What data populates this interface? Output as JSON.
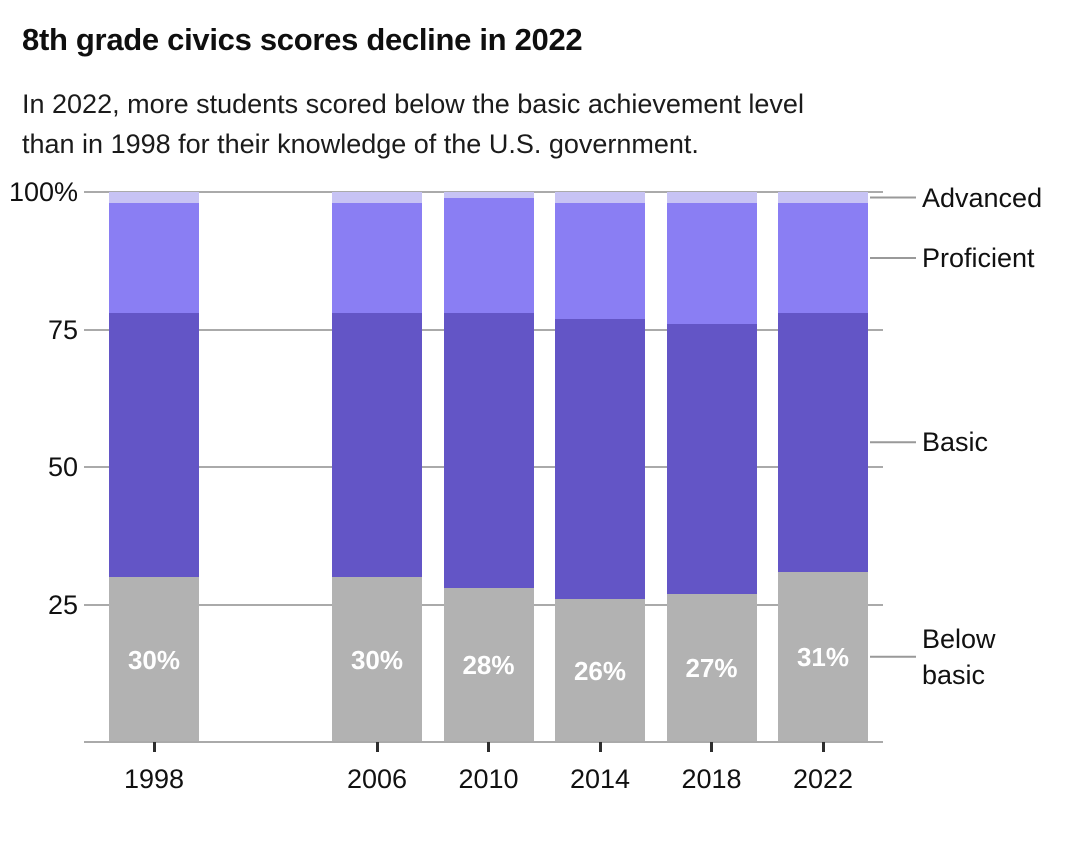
{
  "header": {
    "title": "8th grade civics scores decline in 2022",
    "subtitle_line1": "In 2022, more students scored below the basic achievement level",
    "subtitle_line2": "than in 1998 for their knowledge of the U.S. government."
  },
  "chart_data": {
    "type": "bar",
    "stacked": true,
    "unit": "percent of students",
    "categories": [
      "1998",
      "2006",
      "2010",
      "2014",
      "2018",
      "2022"
    ],
    "x_axis_note": "linear year scale, no assessment in 2002 (gap between 1998 and 2006)",
    "series": [
      {
        "name": "Below basic",
        "color": "#b2b2b2",
        "values": [
          30,
          30,
          28,
          26,
          27,
          31
        ]
      },
      {
        "name": "Basic",
        "color": "#6355c6",
        "values": [
          48,
          48,
          50,
          51,
          49,
          47
        ]
      },
      {
        "name": "Proficient",
        "color": "#8a7ef3",
        "values": [
          20,
          20,
          21,
          21,
          22,
          20
        ]
      },
      {
        "name": "Advanced",
        "color": "#c7c3f4",
        "values": [
          2,
          2,
          1,
          2,
          2,
          2
        ]
      }
    ],
    "value_labels": [
      "30%",
      "30%",
      "28%",
      "26%",
      "27%",
      "31%"
    ],
    "value_label_series": "Below basic",
    "y_ticks": [
      {
        "value": 100,
        "label": "100%"
      },
      {
        "value": 75,
        "label": "75"
      },
      {
        "value": 50,
        "label": "50"
      },
      {
        "value": 25,
        "label": "25"
      }
    ],
    "ylim": [
      0,
      100
    ],
    "grid": "horizontal gridlines behind bars",
    "legend_position": "right edge annotations with connector lines",
    "legend_labels": [
      "Advanced",
      "Proficient",
      "Basic",
      "Below basic"
    ]
  },
  "colors": {
    "background": "#ffffff",
    "gridline": "#aaaaaa",
    "connector": "#999999",
    "axis_tick": "#2e2e2e",
    "text": "#111111",
    "bar_label_text": "#ffffff"
  }
}
